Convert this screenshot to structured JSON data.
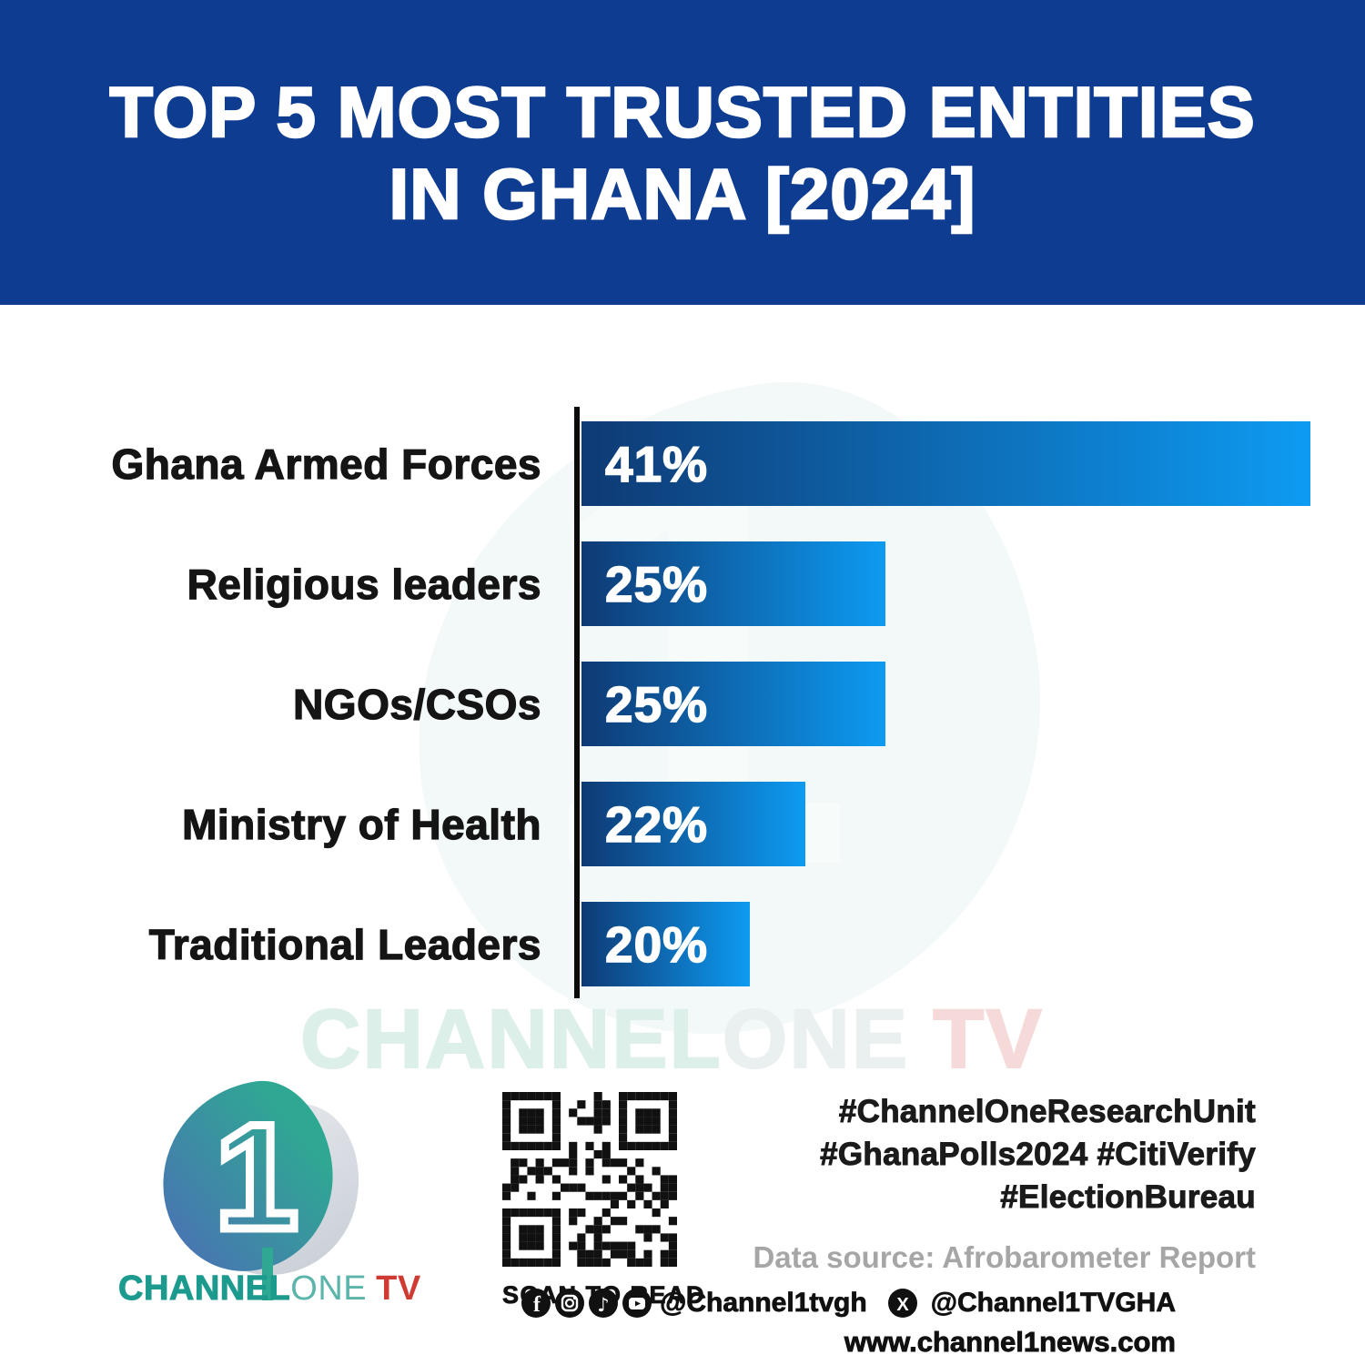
{
  "header": {
    "title_line1": "TOP 5 MOST TRUSTED ENTITIES",
    "title_line2": "IN GHANA [2024]"
  },
  "chart_data": {
    "type": "bar",
    "orientation": "horizontal",
    "title": "TOP 5 MOST TRUSTED ENTITIES IN GHANA [2024]",
    "categories": [
      "Ghana Armed Forces",
      "Religious leaders",
      "NGOs/CSOs",
      "Ministry of Health",
      "Traditional Leaders"
    ],
    "values": [
      41,
      25,
      25,
      22,
      20
    ],
    "value_labels": [
      "41%",
      "25%",
      "25%",
      "22%",
      "20%"
    ],
    "unit": "%",
    "grid": false,
    "value_label_position": "inside-left",
    "display_width_frac": [
      1.0,
      0.417,
      0.417,
      0.307,
      0.231
    ],
    "source": "Afrobarometer Report"
  },
  "watermark": {
    "part1": "CHANNEL",
    "part2": "ONE",
    "part3": "TV",
    "one_glyph": "1"
  },
  "footer": {
    "logo": {
      "glyph": "1",
      "brand_part1": "CHANNEL",
      "brand_part2": "ONE",
      "brand_part3": "TV"
    },
    "qr_caption": "SCAN TO READ",
    "hashtags": [
      "#ChannelOneResearchUnit",
      "#GhanaPolls2024 #CitiVerify",
      "#ElectionBureau"
    ],
    "data_source": "Data source: Afrobarometer Report",
    "social": {
      "icons": [
        "facebook",
        "instagram",
        "tiktok",
        "youtube"
      ],
      "handle1": "@Channel1tvgh",
      "x_icon": "x-twitter",
      "handle2": "@Channel1TVGHA"
    },
    "website": "www.channel1news.com"
  },
  "colors": {
    "header_bg": "#0d3c90",
    "bar_dark": "#0e3a74",
    "bar_bright": "#0d9bf2",
    "axis": "#0b0b0b",
    "label": "#151515",
    "value": "#ffffff",
    "wm_channel": "#ddefe9",
    "wm_one": "#eaf0f0",
    "wm_tv": "#f6dada",
    "brand_teal": "#1d9a8e",
    "brand_teal_light": "#5cb5aa",
    "brand_red": "#cf3a33",
    "gray_text": "#a6a6a6",
    "black_text": "#1b1b1b"
  }
}
